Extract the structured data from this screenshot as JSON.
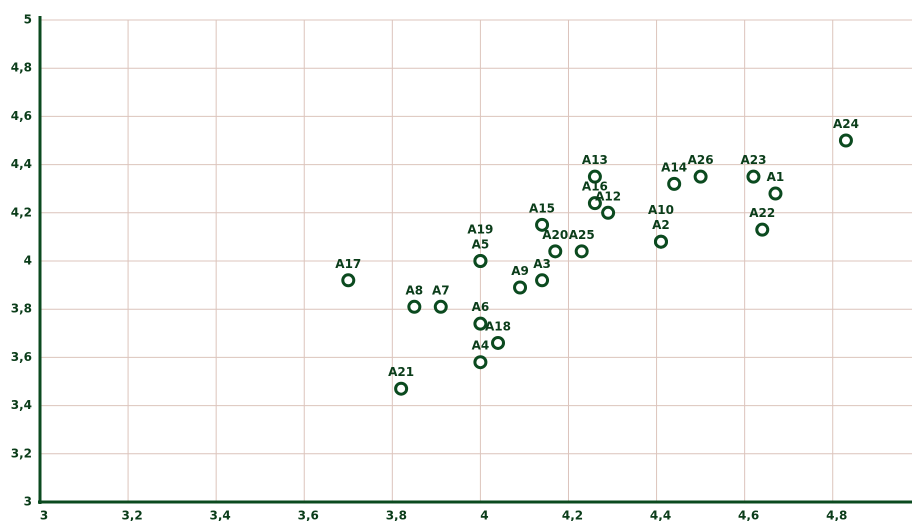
{
  "chart_data": {
    "type": "scatter",
    "point_labels": [
      "A17",
      "A8",
      "A7",
      "A21",
      "A5",
      "A19",
      "A6",
      "A4",
      "A18",
      "A9",
      "A3",
      "A15",
      "A20",
      "A25",
      "A13",
      "A16",
      "A12",
      "A2",
      "A10",
      "A14",
      "A26",
      "A23",
      "A1",
      "A22",
      "A24"
    ],
    "x": [
      3.7,
      3.85,
      3.91,
      3.82,
      4.0,
      4.0,
      4.0,
      4.0,
      4.04,
      4.09,
      4.14,
      4.14,
      4.17,
      4.23,
      4.26,
      4.26,
      4.29,
      4.41,
      4.41,
      4.44,
      4.5,
      4.62,
      4.67,
      4.64,
      4.83
    ],
    "values": [
      3.92,
      3.81,
      3.81,
      3.47,
      4.0,
      4.0,
      3.74,
      3.58,
      3.66,
      3.89,
      3.92,
      4.15,
      4.04,
      4.04,
      4.35,
      4.24,
      4.2,
      4.08,
      4.08,
      4.32,
      4.35,
      4.35,
      4.28,
      4.13,
      4.5
    ],
    "color": "#0b4a1f",
    "xlim": [
      3,
      4.98
    ],
    "xticks": [
      3,
      {
        "value": 3.2,
        "label": "3,2"
      },
      {
        "value": 3.4,
        "label": "3,4"
      },
      {
        "value": 3.6,
        "label": "3,6"
      },
      {
        "value": 3.8,
        "label": "3,8"
      },
      4,
      {
        "value": 4.2,
        "label": "4,2"
      },
      {
        "value": 4.4,
        "label": "4,4"
      },
      {
        "value": 4.6,
        "label": "4,6"
      },
      {
        "value": 4.8,
        "label": "4,8"
      }
    ],
    "ylim": [
      3,
      5
    ],
    "yticks": [
      3,
      {
        "value": 3.2,
        "label": "3,2"
      },
      {
        "value": 3.4,
        "label": "3,4"
      },
      {
        "value": 3.6,
        "label": "3,6"
      },
      {
        "value": 3.8,
        "label": "3,8"
      },
      4,
      {
        "value": 4.2,
        "label": "4,2"
      },
      {
        "value": 4.4,
        "label": "4,4"
      },
      {
        "value": 4.6,
        "label": "4,6"
      },
      {
        "value": 4.8,
        "label": "4,8"
      },
      5
    ],
    "grid": true
  }
}
